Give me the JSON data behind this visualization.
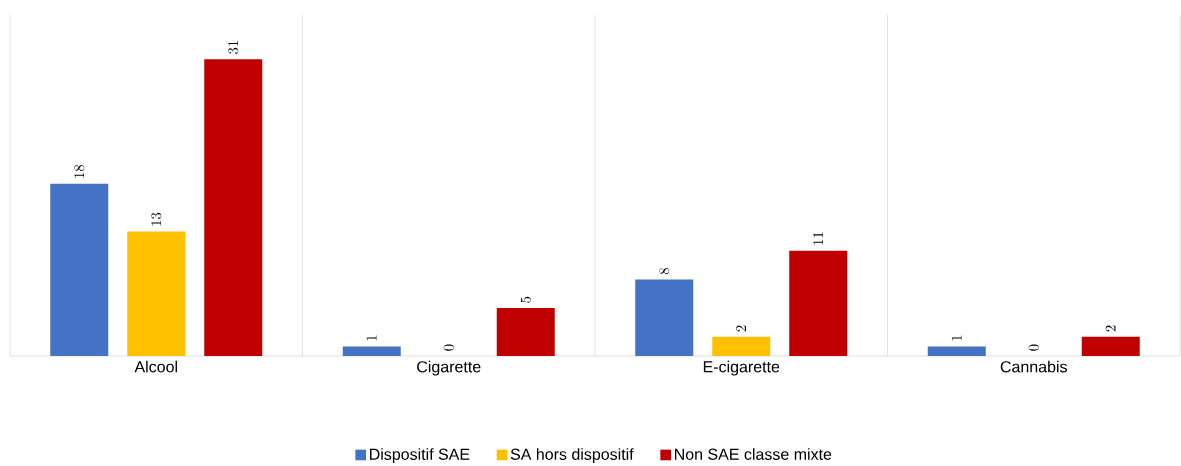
{
  "chart_data": {
    "type": "bar",
    "categories": [
      "Alcool",
      "Cigarette",
      "E-cigarette",
      "Cannabis"
    ],
    "series": [
      {
        "name": "Dispositif SAE",
        "color": "#4472c4",
        "values": [
          18,
          1,
          8,
          1
        ]
      },
      {
        "name": "SA hors dispositif",
        "color": "#ffc000",
        "values": [
          13,
          0,
          2,
          0
        ]
      },
      {
        "name": "Non SAE classe mixte",
        "color": "#c00000",
        "values": [
          31,
          5,
          11,
          2
        ]
      }
    ],
    "data_labels": true,
    "grid": "x",
    "legend": "bottom"
  }
}
